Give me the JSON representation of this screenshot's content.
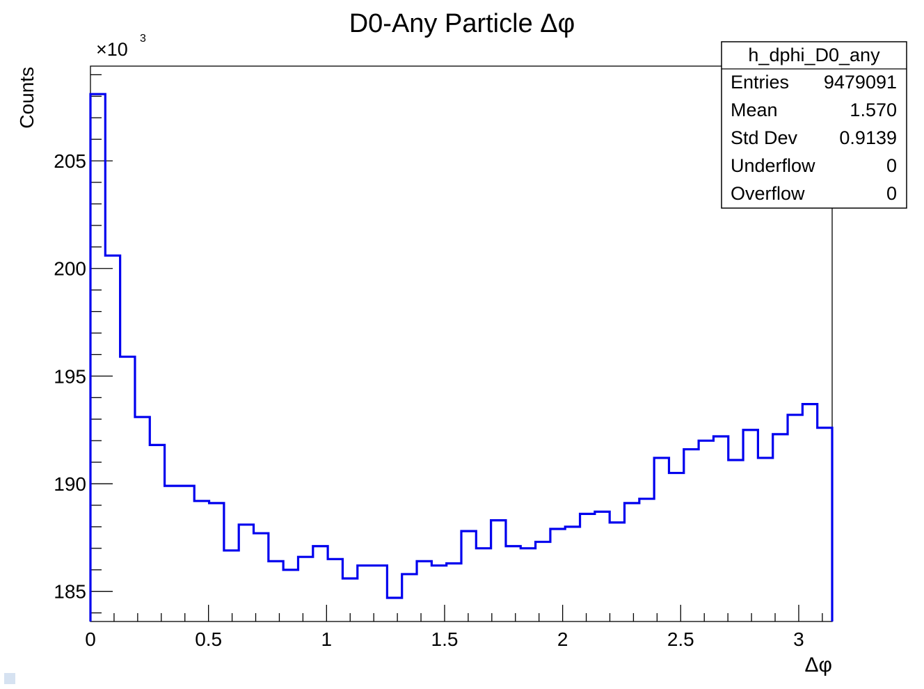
{
  "chart_data": {
    "type": "histogram",
    "title": "D0-Any Particle Δφ",
    "xlabel": "Δφ",
    "ylabel": "Counts",
    "y_multiplier_label": "×10",
    "y_multiplier_exponent": "3",
    "xlim": [
      0,
      3.1416
    ],
    "ylim": [
      183.6,
      209.4
    ],
    "x_ticks": [
      {
        "value": 0,
        "label": "0"
      },
      {
        "value": 0.5,
        "label": "0.5"
      },
      {
        "value": 1,
        "label": "1"
      },
      {
        "value": 1.5,
        "label": "1.5"
      },
      {
        "value": 2,
        "label": "2"
      },
      {
        "value": 2.5,
        "label": "2.5"
      },
      {
        "value": 3,
        "label": "3"
      }
    ],
    "y_ticks": [
      {
        "value": 185,
        "label": "185"
      },
      {
        "value": 190,
        "label": "190"
      },
      {
        "value": 195,
        "label": "195"
      },
      {
        "value": 200,
        "label": "200"
      },
      {
        "value": 205,
        "label": "205"
      }
    ],
    "bins": 50,
    "series": [
      {
        "color": "#0000ee",
        "values": [
          208.1,
          200.6,
          195.9,
          193.1,
          191.8,
          189.9,
          189.9,
          189.2,
          189.1,
          186.9,
          188.1,
          187.7,
          186.4,
          186.0,
          186.6,
          187.1,
          186.5,
          185.6,
          186.2,
          186.2,
          184.7,
          185.8,
          186.4,
          186.2,
          186.3,
          187.8,
          187.0,
          188.3,
          187.1,
          187.0,
          187.3,
          187.9,
          188.0,
          188.6,
          188.7,
          188.2,
          189.1,
          189.3,
          191.2,
          190.5,
          191.6,
          192.0,
          192.2,
          191.1,
          192.5,
          191.2,
          192.3,
          193.2,
          193.7,
          192.6
        ]
      }
    ]
  },
  "stats_box": {
    "name": "h_dphi_D0_any",
    "rows": [
      {
        "label": "Entries",
        "value": "9479091"
      },
      {
        "label": "Mean",
        "value": "1.570"
      },
      {
        "label": "Std Dev",
        "value": "0.9139"
      },
      {
        "label": "Underflow",
        "value": "0"
      },
      {
        "label": "Overflow",
        "value": "0"
      }
    ]
  }
}
